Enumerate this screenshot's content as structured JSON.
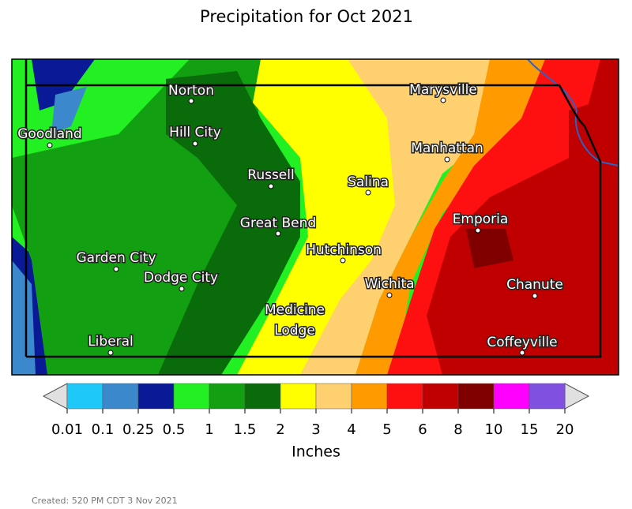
{
  "title": "Precipitation for Oct 2021",
  "cities": [
    "Norton",
    "Goodland",
    "Hill City",
    "Russell",
    "Marysville",
    "Manhattan",
    "Salina",
    "Great Bend",
    "Emporia",
    "Hutchinson",
    "Garden City",
    "Dodge City",
    "Wichita",
    "Chanute",
    "Medicine Lodge",
    "Liberal",
    "Coffeyville"
  ],
  "colorbar": {
    "label": "Inches",
    "ticks": [
      "0.01",
      "0.1",
      "0.25",
      "0.5",
      "1",
      "1.5",
      "2",
      "3",
      "4",
      "5",
      "6",
      "8",
      "10",
      "15",
      "20"
    ],
    "colors": [
      "#1ec8f8",
      "#3c88cc",
      "#0a1a96",
      "#22f022",
      "#12a012",
      "#0a6b0a",
      "#ffff00",
      "#ffd070",
      "#ff9a00",
      "#ff1010",
      "#c00000",
      "#800000",
      "#ff00ff",
      "#8050e0"
    ]
  },
  "created": "Created: 520 PM CDT 3 Nov 2021"
}
